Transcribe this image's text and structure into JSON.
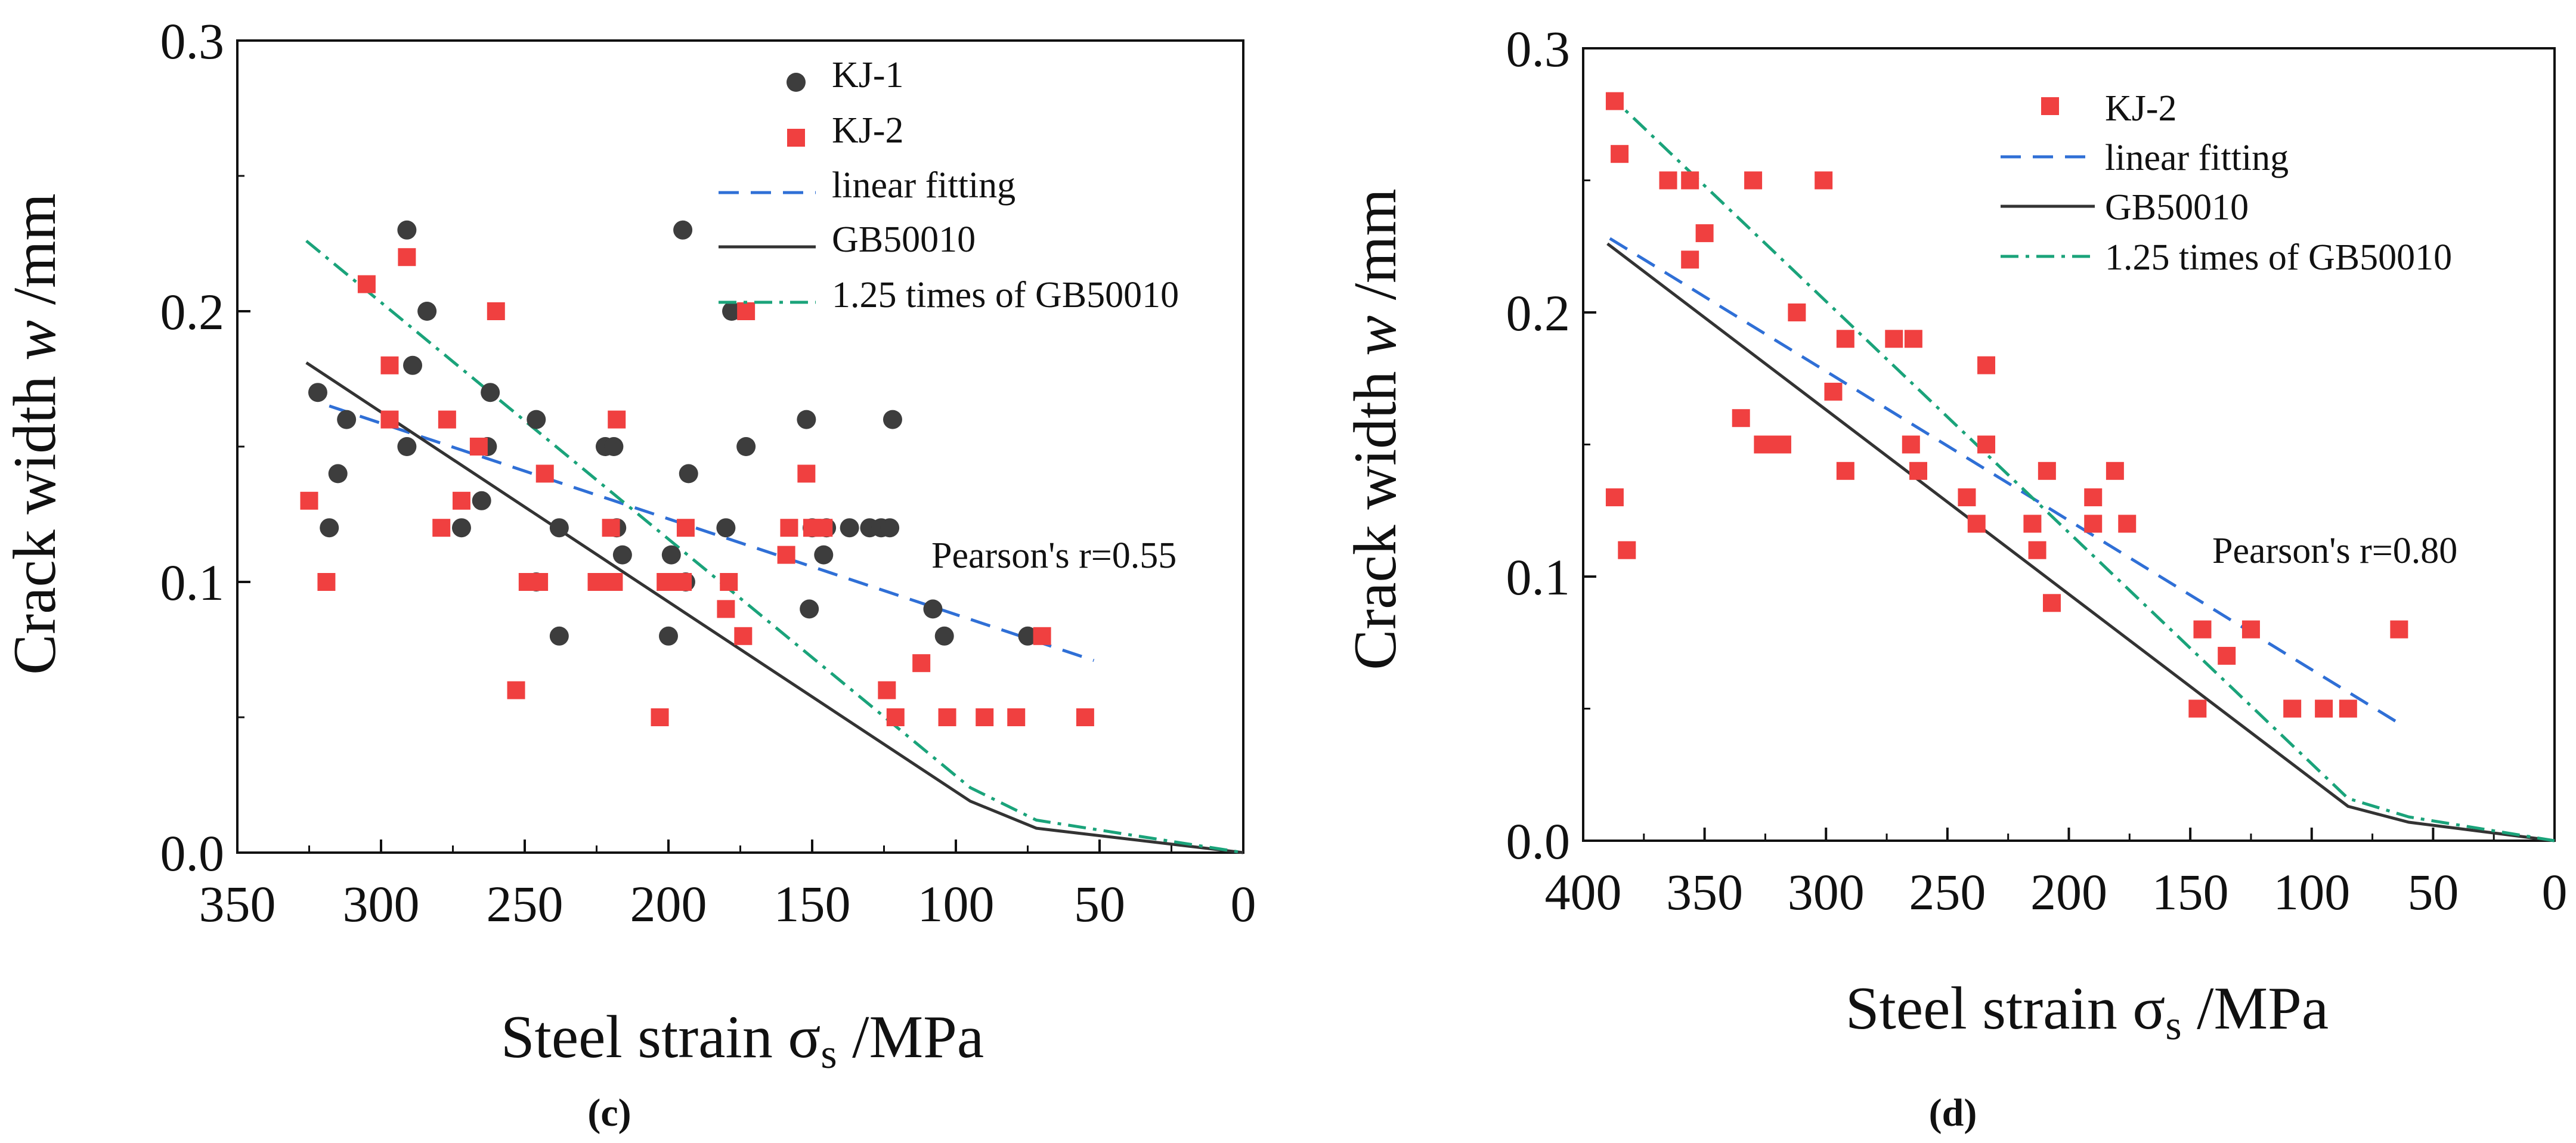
{
  "chart_data": [
    {
      "type": "scatter",
      "panel_label": "(c)",
      "xlabel": "Steel strain σs /MPa",
      "ylabel": "Crack width w /mm",
      "xlim": [
        350,
        0
      ],
      "ylim": [
        0.0,
        0.3
      ],
      "x_ticks": [
        "350",
        "300",
        "250",
        "200",
        "150",
        "100",
        "50",
        "0"
      ],
      "y_ticks": [
        "0.0",
        "0.1",
        "0.2",
        "0.3"
      ],
      "annotation": "Pearson's r=0.55",
      "legend": [
        "KJ-1",
        "KJ-2",
        "linear fitting",
        "GB50010",
        "1.25 times of GB50010"
      ],
      "series": [
        {
          "name": "KJ-1",
          "kind": "points",
          "marker": "circle",
          "color": "#3d3d3d",
          "points": [
            [
              322,
              0.17
            ],
            [
              318,
              0.12
            ],
            [
              315,
              0.14
            ],
            [
              312,
              0.16
            ],
            [
              291,
              0.23
            ],
            [
              291,
              0.15
            ],
            [
              289,
              0.18
            ],
            [
              284,
              0.2
            ],
            [
              265,
              0.13
            ],
            [
              263,
              0.15
            ],
            [
              262,
              0.17
            ],
            [
              272,
              0.12
            ],
            [
              246,
              0.16
            ],
            [
              246,
              0.1
            ],
            [
              238,
              0.12
            ],
            [
              238,
              0.08
            ],
            [
              222,
              0.15
            ],
            [
              219,
              0.15
            ],
            [
              218,
              0.12
            ],
            [
              216,
              0.11
            ],
            [
              200,
              0.08
            ],
            [
              199,
              0.11
            ],
            [
              195,
              0.23
            ],
            [
              193,
              0.14
            ],
            [
              194,
              0.1
            ],
            [
              180,
              0.12
            ],
            [
              178,
              0.2
            ],
            [
              173,
              0.15
            ],
            [
              152,
              0.16
            ],
            [
              151,
              0.09
            ],
            [
              150,
              0.12
            ],
            [
              146,
              0.11
            ],
            [
              145,
              0.12
            ],
            [
              137,
              0.12
            ],
            [
              130,
              0.12
            ],
            [
              126,
              0.12
            ],
            [
              123,
              0.12
            ],
            [
              122,
              0.16
            ],
            [
              108,
              0.09
            ],
            [
              104,
              0.08
            ],
            [
              75,
              0.08
            ]
          ]
        },
        {
          "name": "KJ-2",
          "kind": "points",
          "marker": "square",
          "color": "#f04040",
          "points": [
            [
              325,
              0.13
            ],
            [
              319,
              0.1
            ],
            [
              305,
              0.21
            ],
            [
              297,
              0.18
            ],
            [
              297,
              0.16
            ],
            [
              291,
              0.22
            ],
            [
              279,
              0.12
            ],
            [
              277,
              0.16
            ],
            [
              272,
              0.13
            ],
            [
              266,
              0.15
            ],
            [
              260,
              0.2
            ],
            [
              249,
              0.1
            ],
            [
              245,
              0.1
            ],
            [
              243,
              0.14
            ],
            [
              253,
              0.06
            ],
            [
              225,
              0.1
            ],
            [
              220,
              0.12
            ],
            [
              219,
              0.1
            ],
            [
              218,
              0.16
            ],
            [
              201,
              0.1
            ],
            [
              203,
              0.05
            ],
            [
              195,
              0.1
            ],
            [
              194,
              0.12
            ],
            [
              180,
              0.09
            ],
            [
              179,
              0.1
            ],
            [
              174,
              0.08
            ],
            [
              173,
              0.2
            ],
            [
              159,
              0.11
            ],
            [
              158,
              0.12
            ],
            [
              152,
              0.14
            ],
            [
              150,
              0.12
            ],
            [
              146,
              0.12
            ],
            [
              124,
              0.06
            ],
            [
              121,
              0.05
            ],
            [
              112,
              0.07
            ],
            [
              103,
              0.05
            ],
            [
              90,
              0.05
            ],
            [
              79,
              0.05
            ],
            [
              70,
              0.08
            ],
            [
              55,
              0.05
            ]
          ]
        },
        {
          "name": "linear fitting",
          "kind": "line",
          "dash": "dashed",
          "color": "#2f6fd6",
          "points": [
            [
              318,
              0.165
            ],
            [
              52,
              0.071
            ]
          ]
        },
        {
          "name": "GB50010",
          "kind": "line",
          "dash": "solid",
          "color": "#333333",
          "points": [
            [
              326,
              0.181
            ],
            [
              95,
              0.019
            ],
            [
              72,
              0.009
            ],
            [
              0,
              0.0
            ]
          ]
        },
        {
          "name": "1.25 times of GB50010",
          "kind": "line",
          "dash": "dashdot",
          "color": "#1aa37a",
          "points": [
            [
              326,
              0.226
            ],
            [
              95,
              0.024
            ],
            [
              72,
              0.012
            ],
            [
              0,
              0.0
            ]
          ]
        }
      ]
    },
    {
      "type": "scatter",
      "panel_label": "(d)",
      "xlabel": "Steel strain σs /MPa",
      "ylabel": "Crack width w /mm",
      "xlim": [
        400,
        0
      ],
      "ylim": [
        0.0,
        0.3
      ],
      "x_ticks": [
        "400",
        "350",
        "300",
        "250",
        "200",
        "150",
        "100",
        "50",
        "0"
      ],
      "y_ticks": [
        "0.0",
        "0.1",
        "0.2",
        "0.3"
      ],
      "annotation": "Pearson's r=0.80",
      "legend": [
        "KJ-2",
        "linear fitting",
        "GB50010",
        "1.25 times of GB50010"
      ],
      "series": [
        {
          "name": "KJ-2",
          "kind": "points",
          "marker": "square",
          "color": "#f04040",
          "points": [
            [
              387,
              0.28
            ],
            [
              385,
              0.26
            ],
            [
              387,
              0.13
            ],
            [
              382,
              0.11
            ],
            [
              365,
              0.25
            ],
            [
              356,
              0.25
            ],
            [
              356,
              0.22
            ],
            [
              350,
              0.23
            ],
            [
              330,
              0.25
            ],
            [
              301,
              0.25
            ],
            [
              335,
              0.16
            ],
            [
              326,
              0.15
            ],
            [
              323,
              0.15
            ],
            [
              318,
              0.15
            ],
            [
              312,
              0.2
            ],
            [
              297,
              0.17
            ],
            [
              292,
              0.19
            ],
            [
              292,
              0.14
            ],
            [
              272,
              0.19
            ],
            [
              264,
              0.19
            ],
            [
              265,
              0.15
            ],
            [
              262,
              0.14
            ],
            [
              242,
              0.13
            ],
            [
              238,
              0.12
            ],
            [
              234,
              0.18
            ],
            [
              234,
              0.15
            ],
            [
              215,
              0.12
            ],
            [
              213,
              0.11
            ],
            [
              209,
              0.14
            ],
            [
              207,
              0.09
            ],
            [
              190,
              0.13
            ],
            [
              190,
              0.12
            ],
            [
              181,
              0.14
            ],
            [
              176,
              0.12
            ],
            [
              147,
              0.05
            ],
            [
              145,
              0.08
            ],
            [
              135,
              0.07
            ],
            [
              125,
              0.08
            ],
            [
              108,
              0.05
            ],
            [
              95,
              0.05
            ],
            [
              85,
              0.05
            ],
            [
              64,
              0.08
            ]
          ]
        },
        {
          "name": "linear fitting",
          "kind": "line",
          "dash": "dashed",
          "color": "#2f6fd6",
          "points": [
            [
              389,
              0.228
            ],
            [
              65,
              0.045
            ]
          ]
        },
        {
          "name": "GB50010",
          "kind": "line",
          "dash": "solid",
          "color": "#333333",
          "points": [
            [
              390,
              0.226
            ],
            [
              85,
              0.013
            ],
            [
              60,
              0.007
            ],
            [
              0,
              0.0
            ]
          ]
        },
        {
          "name": "1.25 times of GB50010",
          "kind": "line",
          "dash": "dashdot",
          "color": "#1aa37a",
          "points": [
            [
              390,
              0.283
            ],
            [
              85,
              0.016
            ],
            [
              60,
              0.009
            ],
            [
              0,
              0.0
            ]
          ]
        }
      ]
    }
  ]
}
